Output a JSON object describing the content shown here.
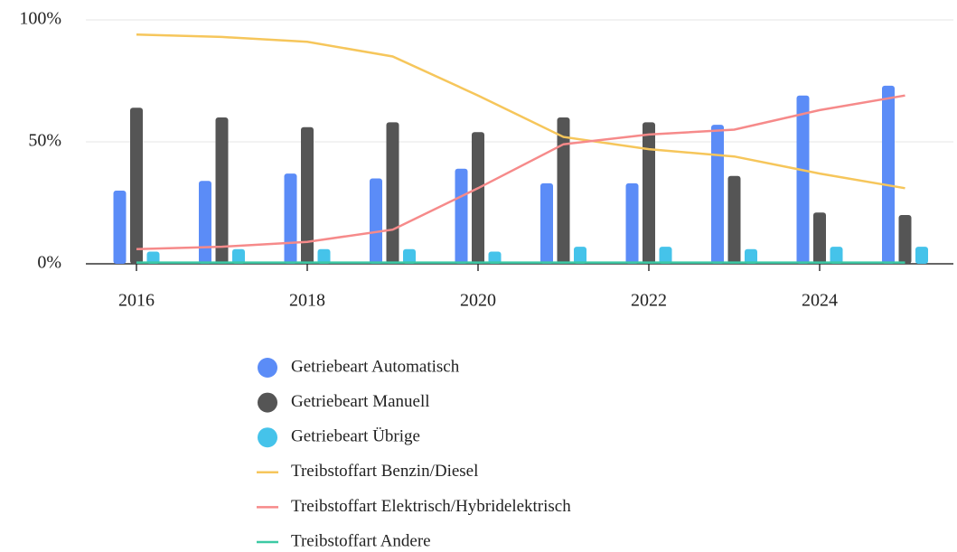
{
  "chart_data": {
    "type": "bar",
    "x": [
      2016,
      2017,
      2018,
      2019,
      2020,
      2021,
      2022,
      2023,
      2024,
      2025
    ],
    "xlim": [
      2015.4,
      2025.55
    ],
    "xticks": [
      2016,
      2018,
      2020,
      2022,
      2024
    ],
    "ylim": [
      0,
      100
    ],
    "yticks": [
      {
        "value": 0,
        "label": "0%"
      },
      {
        "value": 50,
        "label": "50%"
      },
      {
        "value": 100,
        "label": "100%"
      }
    ],
    "grid": true,
    "series": [
      {
        "name": "Getriebeart Automatisch",
        "type": "bar",
        "color": "#5b8cf7",
        "values": [
          30,
          34,
          37,
          35,
          39,
          33,
          33,
          57,
          69,
          73
        ]
      },
      {
        "name": "Getriebeart Manuell",
        "type": "bar",
        "color": "#555555",
        "values": [
          64,
          60,
          56,
          58,
          54,
          60,
          58,
          36,
          21,
          20
        ]
      },
      {
        "name": "Getriebeart Übrige",
        "type": "bar",
        "color": "#45c3ea",
        "values": [
          5,
          6,
          6,
          6,
          5,
          7,
          7,
          6,
          7,
          7
        ]
      },
      {
        "name": "Treibstoffart Benzin/Diesel",
        "type": "line",
        "color": "#f6c65b",
        "values": [
          94,
          93,
          91,
          85,
          69,
          52,
          47,
          44,
          37,
          31
        ]
      },
      {
        "name": "Treibstoffart Elektrisch/Hybridelektrisch",
        "type": "line",
        "color": "#f68a8a",
        "values": [
          6,
          7,
          9,
          14,
          31,
          49,
          53,
          55,
          63,
          69
        ]
      },
      {
        "name": "Treibstoffart Andere",
        "type": "line",
        "color": "#3cc9a4",
        "values": [
          0.5,
          0.5,
          0.5,
          0.5,
          0.5,
          0.5,
          0.5,
          0.5,
          0.5,
          0.5
        ]
      }
    ]
  }
}
